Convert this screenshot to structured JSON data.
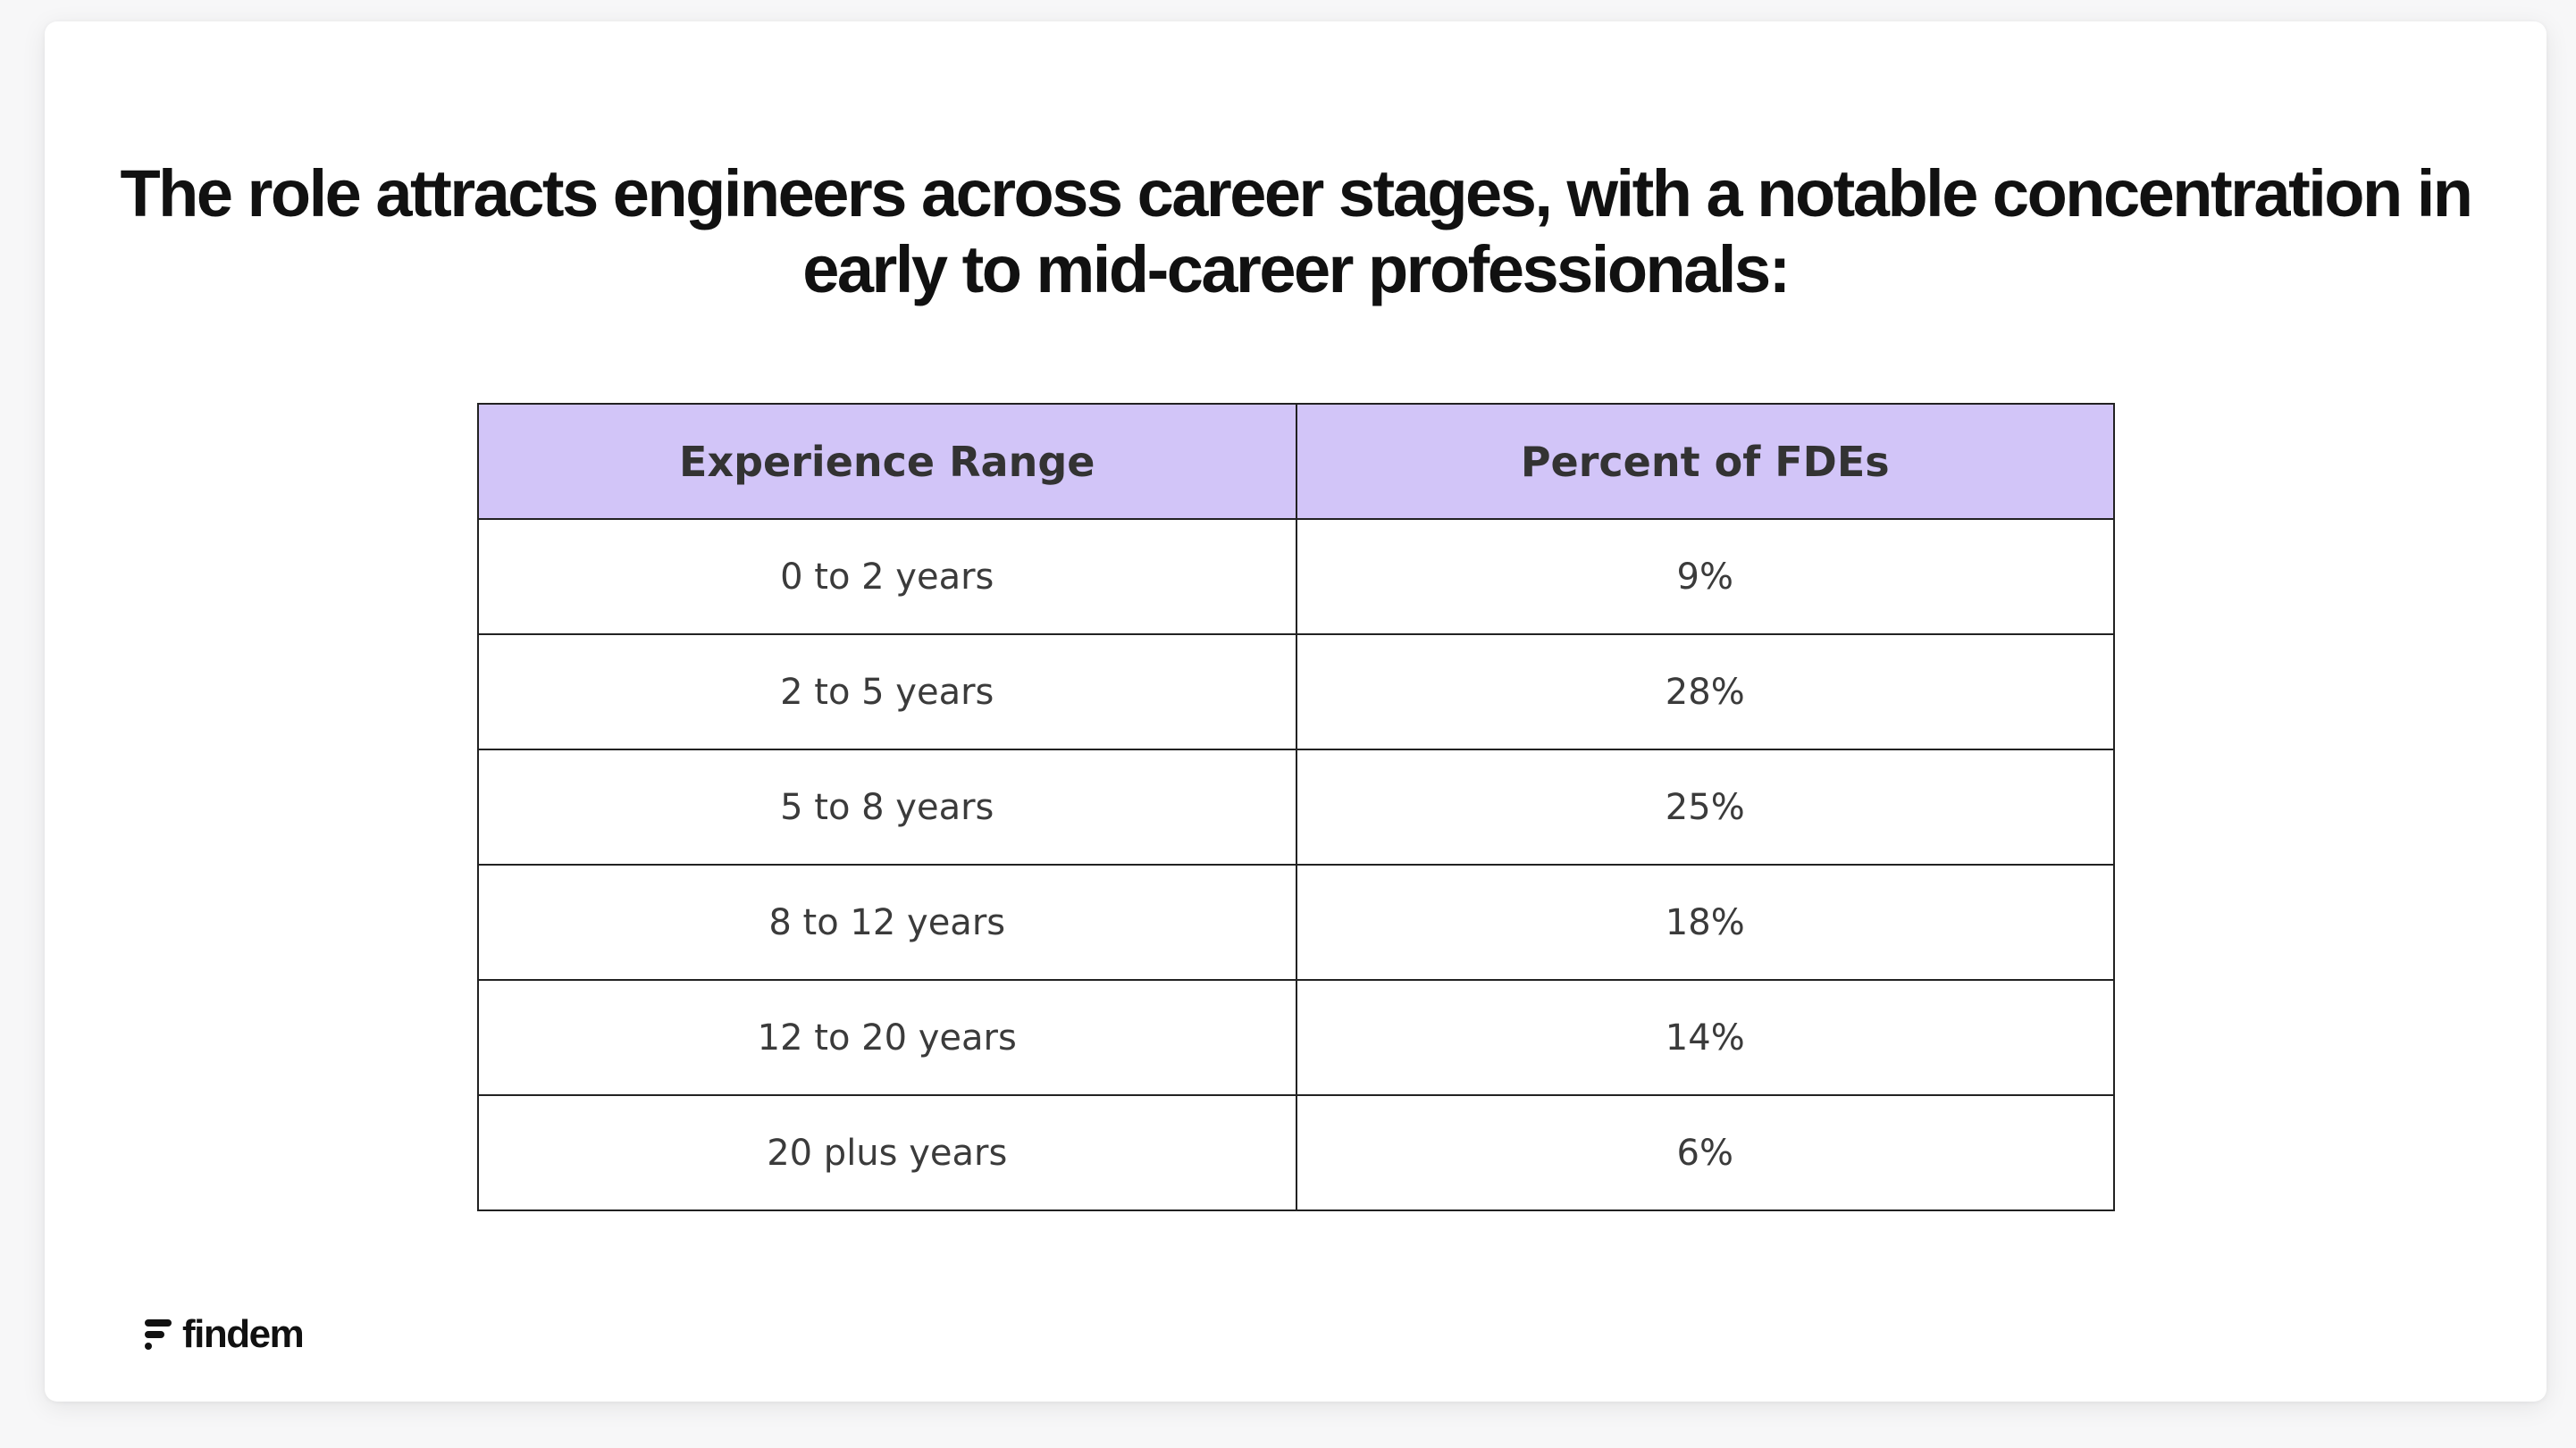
{
  "headline": {
    "part1": "The role attracts ",
    "bold": "engineers across career stages,",
    "part2": " with a notable concentration in early to mid-career professionals:"
  },
  "table": {
    "headers": [
      "Experience Range",
      "Percent of FDEs"
    ],
    "rows": [
      [
        "0 to 2 years",
        "9%"
      ],
      [
        "2 to 5 years",
        "28%"
      ],
      [
        "5 to 8 years",
        "25%"
      ],
      [
        "8 to 12 years",
        "18%"
      ],
      [
        "12 to 20 years",
        "14%"
      ],
      [
        "20 plus years",
        "6%"
      ]
    ],
    "header_color": "#d2c5f8"
  },
  "brand": {
    "name": "findem",
    "icon": "findem-logo-icon"
  }
}
